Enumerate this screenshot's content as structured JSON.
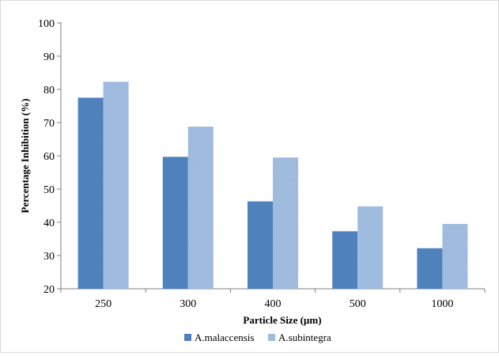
{
  "chart_data": {
    "type": "bar",
    "categories": [
      "250",
      "300",
      "400",
      "500",
      "1000"
    ],
    "series": [
      {
        "name": "A.malaccensis",
        "values": [
          77.5,
          59.7,
          46.3,
          37.3,
          32.2
        ],
        "color": "#4f81bd",
        "pattern": "solid"
      },
      {
        "name": "A.subintegra",
        "values": [
          82.3,
          68.8,
          59.5,
          44.8,
          39.5
        ],
        "color": "#a8c2e2",
        "pattern": "hatched"
      }
    ],
    "xlabel": "Particle Size (µm)",
    "ylabel": "Percentage Inhibition (%)",
    "ylim": [
      20,
      100
    ],
    "yticks": [
      "20",
      "30",
      "40",
      "50",
      "60",
      "70",
      "80",
      "90",
      "100"
    ],
    "grid": false,
    "legend": "bottom"
  }
}
